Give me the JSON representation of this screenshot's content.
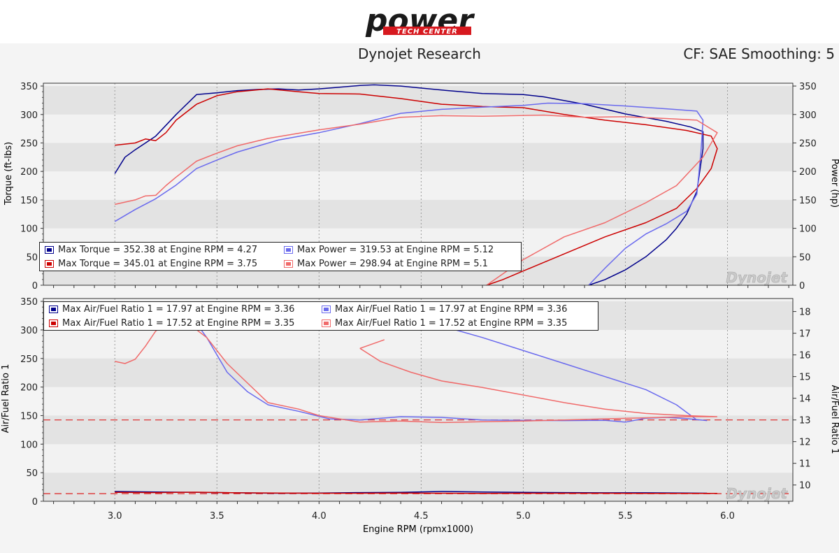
{
  "logo": {
    "text": "power",
    "subtitle": "TECH CENTER"
  },
  "header": {
    "title": "Dynojet Research",
    "cf_label": "CF: SAE Smoothing: 5"
  },
  "watermark": "Dynojet",
  "colors": {
    "run1": "#00008b",
    "run2": "#cc0000",
    "run1_light": "#6a6aee",
    "run2_light": "#f06a6a",
    "reference": "#dd2222"
  },
  "chart_data": [
    {
      "type": "line",
      "xlabel": "",
      "ylabel": "Torque (ft-lbs)",
      "y2label": "Power (hp)",
      "xlim": [
        2.65,
        6.32
      ],
      "ylim": [
        0,
        355
      ],
      "y2lim": [
        0,
        355
      ],
      "xticks": [
        "3.0",
        "3.5",
        "4.0",
        "4.5",
        "5.0",
        "5.5",
        "6.0"
      ],
      "yticks": [
        0,
        50,
        100,
        150,
        200,
        250,
        300,
        350
      ],
      "y2ticks": [
        0,
        50,
        100,
        150,
        200,
        250,
        300,
        350
      ],
      "legend_position": "bottom-left",
      "series": [
        {
          "name": "Max Torque = 352.38 at Engine RPM = 4.27",
          "color": "#00008b",
          "axis": "left",
          "x": [
            3.0,
            3.05,
            3.1,
            3.2,
            3.3,
            3.4,
            3.5,
            3.6,
            3.7,
            3.8,
            3.9,
            4.0,
            4.1,
            4.2,
            4.27,
            4.4,
            4.6,
            4.8,
            5.0,
            5.1,
            5.3,
            5.5,
            5.7,
            5.82,
            5.88,
            5.88,
            5.85,
            5.8,
            5.75,
            5.7,
            5.6,
            5.5,
            5.4,
            5.32
          ],
          "y": [
            196,
            225,
            238,
            262,
            300,
            335,
            338,
            342,
            344,
            345,
            343,
            345,
            348,
            351,
            352,
            350,
            343,
            337,
            335,
            331,
            318,
            301,
            288,
            278,
            270,
            240,
            165,
            125,
            100,
            80,
            50,
            27,
            10,
            0
          ]
        },
        {
          "name": "Max Torque = 345.01 at Engine RPM = 3.75",
          "color": "#cc0000",
          "axis": "left",
          "x": [
            3.0,
            3.1,
            3.15,
            3.2,
            3.25,
            3.3,
            3.4,
            3.5,
            3.6,
            3.75,
            3.9,
            4.0,
            4.2,
            4.4,
            4.6,
            4.8,
            5.0,
            5.2,
            5.4,
            5.6,
            5.8,
            5.92,
            5.95,
            5.92,
            5.85,
            5.75,
            5.6,
            5.4,
            5.2,
            5.0,
            4.9,
            4.82
          ],
          "y": [
            246,
            250,
            257,
            254,
            268,
            290,
            318,
            333,
            340,
            345,
            340,
            337,
            336,
            328,
            318,
            314,
            312,
            300,
            290,
            282,
            272,
            262,
            240,
            205,
            170,
            135,
            110,
            85,
            55,
            25,
            10,
            0
          ]
        },
        {
          "name": "Max Power = 319.53 at Engine RPM = 5.12",
          "color": "#6a6aee",
          "axis": "right",
          "x": [
            3.0,
            3.1,
            3.2,
            3.3,
            3.4,
            3.5,
            3.6,
            3.8,
            4.0,
            4.2,
            4.4,
            4.6,
            4.8,
            5.0,
            5.12,
            5.3,
            5.5,
            5.7,
            5.85,
            5.88,
            5.87,
            5.85,
            5.8,
            5.7,
            5.6,
            5.5,
            5.4,
            5.32
          ],
          "y": [
            112,
            133,
            152,
            176,
            205,
            220,
            234,
            255,
            268,
            284,
            302,
            309,
            313,
            316,
            320,
            319,
            315,
            310,
            306,
            290,
            235,
            160,
            130,
            108,
            90,
            65,
            30,
            0
          ]
        },
        {
          "name": "Max Power = 298.94 at Engine RPM = 5.1",
          "color": "#f06a6a",
          "axis": "right",
          "x": [
            3.0,
            3.1,
            3.15,
            3.2,
            3.25,
            3.3,
            3.4,
            3.5,
            3.6,
            3.75,
            3.9,
            4.0,
            4.2,
            4.4,
            4.6,
            4.8,
            5.1,
            5.3,
            5.5,
            5.7,
            5.85,
            5.95,
            5.88,
            5.75,
            5.6,
            5.4,
            5.2,
            5.0,
            4.9,
            4.82
          ],
          "y": [
            142,
            150,
            157,
            158,
            175,
            190,
            218,
            232,
            245,
            258,
            267,
            273,
            283,
            295,
            298,
            297,
            299,
            295,
            296,
            293,
            290,
            268,
            225,
            175,
            145,
            110,
            85,
            45,
            20,
            0
          ]
        }
      ]
    },
    {
      "type": "line",
      "xlabel": "Engine RPM (rpmx1000)",
      "ylabel": "Air/Fuel Ratio 1",
      "y2label": "Air/Fuel Ratio 1",
      "xlim": [
        2.65,
        6.32
      ],
      "ylim": [
        0,
        355
      ],
      "y2lim": [
        9.25,
        18.6
      ],
      "xticks": [
        "3.0",
        "3.5",
        "4.0",
        "4.5",
        "5.0",
        "5.5",
        "6.0"
      ],
      "yticks": [
        0,
        50,
        100,
        150,
        200,
        250,
        300,
        350
      ],
      "y2ticks": [
        10,
        11,
        12,
        13,
        14,
        15,
        16,
        17,
        18
      ],
      "reference_lines_afr": [
        13.0,
        9.6
      ],
      "legend_position": "top-left",
      "series": [
        {
          "name": "Max Air/Fuel Ratio 1 = 17.97 at Engine RPM = 3.36",
          "color": "#00008b",
          "axis": "right",
          "x": [
            3.0,
            3.2,
            3.4,
            3.6,
            3.8,
            4.0,
            4.2,
            4.4,
            4.6,
            4.8,
            5.0,
            5.2,
            5.4,
            5.6,
            5.8,
            5.9
          ],
          "y": [
            9.7,
            9.68,
            9.66,
            9.64,
            9.62,
            9.63,
            9.65,
            9.66,
            9.7,
            9.68,
            9.66,
            9.65,
            9.64,
            9.64,
            9.63,
            9.62
          ]
        },
        {
          "name": "Max Air/Fuel Ratio 1 = 17.52 at Engine RPM = 3.35",
          "color": "#cc0000",
          "axis": "right",
          "x": [
            3.0,
            3.2,
            3.4,
            3.6,
            3.8,
            4.0,
            4.2,
            4.4,
            4.6,
            4.8,
            5.0,
            5.2,
            5.4,
            5.6,
            5.8,
            5.95
          ],
          "y": [
            9.66,
            9.65,
            9.67,
            9.64,
            9.63,
            9.62,
            9.62,
            9.63,
            9.62,
            9.61,
            9.62,
            9.62,
            9.62,
            9.61,
            9.61,
            9.61
          ]
        },
        {
          "name": "Max Air/Fuel Ratio 1 = 17.97 at Engine RPM = 3.36",
          "color": "#6a6aee",
          "axis": "right",
          "x": [
            3.36,
            3.45,
            3.55,
            3.65,
            3.75,
            3.9,
            4.05,
            4.2,
            4.4,
            4.6,
            4.8,
            5.0,
            5.2,
            5.4,
            5.5,
            5.6,
            5.7,
            5.8,
            5.9,
            null,
            4.65,
            4.8,
            5.0,
            5.2,
            5.4,
            5.6,
            5.75,
            5.85
          ],
          "y": [
            17.97,
            16.8,
            15.2,
            14.3,
            13.7,
            13.4,
            13.05,
            13.0,
            13.15,
            13.12,
            13.0,
            12.98,
            12.97,
            12.98,
            12.9,
            13.08,
            13.12,
            13.06,
            12.97,
            null,
            17.2,
            16.8,
            16.2,
            15.6,
            15.0,
            14.4,
            13.7,
            13.0
          ]
        },
        {
          "name": "Max Air/Fuel Ratio 1 = 17.52 at Engine RPM = 3.35",
          "color": "#f06a6a",
          "axis": "right",
          "x": [
            3.0,
            3.05,
            3.1,
            3.15,
            3.2,
            3.28,
            3.35,
            3.45,
            3.55,
            3.65,
            3.75,
            3.9,
            4.0,
            4.2,
            4.4,
            4.6,
            4.8,
            5.0,
            5.2,
            5.4,
            5.6,
            5.8,
            5.95,
            null,
            4.2,
            4.3,
            4.45,
            4.6,
            4.8,
            5.0,
            5.2,
            5.4,
            5.6,
            5.8,
            5.95,
            null,
            4.2,
            4.32
          ],
          "y": [
            15.7,
            15.6,
            15.8,
            16.4,
            17.1,
            17.5,
            17.52,
            16.8,
            15.6,
            14.7,
            13.8,
            13.5,
            13.2,
            12.9,
            12.95,
            12.88,
            12.92,
            12.95,
            13.0,
            13.05,
            13.1,
            13.15,
            13.15,
            null,
            16.3,
            15.7,
            15.2,
            14.8,
            14.5,
            14.15,
            13.8,
            13.5,
            13.3,
            13.2,
            13.15,
            null,
            16.3,
            16.7
          ]
        }
      ]
    }
  ]
}
